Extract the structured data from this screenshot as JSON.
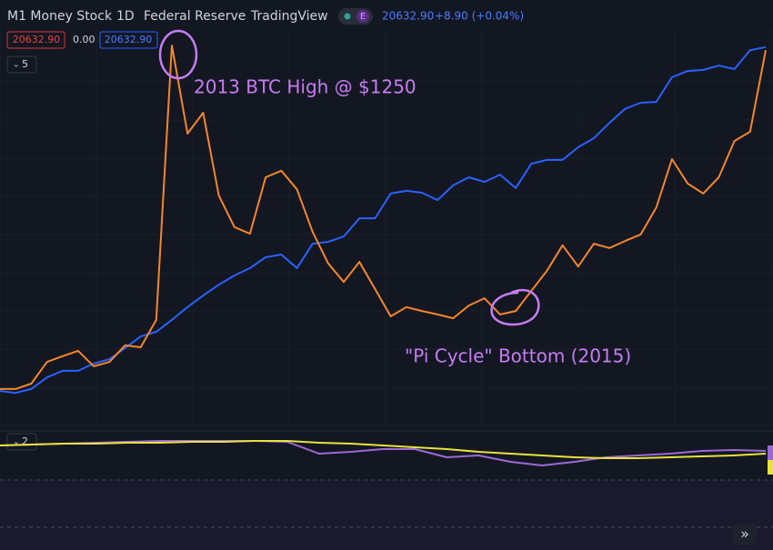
{
  "header": {
    "symbol": "M1 Money Stock",
    "interval": "1D",
    "source": "Federal Reserve",
    "platform": "TradingView",
    "badge": "E",
    "price": "20632.90",
    "change": "+8.90 (+0.04%)"
  },
  "legend": {
    "value_left": "20632.90",
    "zero": "0.00",
    "value_right": "20632.90",
    "collapse_main": "5",
    "collapse_pane": "2",
    "scroll": "»"
  },
  "chart_data": [
    {
      "type": "line",
      "ylim": [
        0,
        100
      ],
      "annotations": [
        "2013 BTC High @ $1250",
        "\"Pi Cycle\" Bottom (2015)"
      ],
      "series": [
        {
          "color": "#2962ff",
          "values": [
            9.4,
            8.9,
            9.9,
            12.9,
            14.6,
            14.6,
            16.5,
            17.6,
            20.5,
            23.5,
            24.7,
            27.8,
            31.1,
            34.1,
            36.9,
            39.3,
            41.2,
            44,
            44.7,
            41.2,
            47.5,
            48,
            49.4,
            54.1,
            54.1,
            60.5,
            61.2,
            60.7,
            58.8,
            62.6,
            64.7,
            63.5,
            65.4,
            61.9,
            68.2,
            69.2,
            69.2,
            72.5,
            74.8,
            78.8,
            82.4,
            84,
            84.2,
            90.6,
            92.2,
            92.5,
            93.6,
            92.7,
            97.6,
            98.4
          ]
        },
        {
          "color": "#f7862a",
          "values": [
            9.9,
            9.9,
            11.3,
            16.9,
            18.4,
            19.8,
            15.8,
            16.9,
            21.2,
            20.7,
            27.8,
            98.8,
            76,
            81.4,
            60,
            51.8,
            50.1,
            64.7,
            66.4,
            61.6,
            50.6,
            42.4,
            37.6,
            42.8,
            35.8,
            28.7,
            31.1,
            30.1,
            29.2,
            28.2,
            31.5,
            33.4,
            29.2,
            30.1,
            35.3,
            40.5,
            47.1,
            41.6,
            47.5,
            46.4,
            48.2,
            49.9,
            56.9,
            69.4,
            63.1,
            60.5,
            64.7,
            74.1,
            76.5,
            97.6
          ]
        }
      ]
    },
    {
      "type": "line",
      "ylim": [
        0,
        100
      ],
      "series": [
        {
          "color": "#9c6ad6",
          "values": [
            80,
            82,
            84,
            86,
            88,
            90,
            90,
            90,
            90,
            88,
            62,
            66,
            72,
            72,
            54,
            58,
            44,
            36,
            44,
            54,
            58,
            62,
            68,
            70,
            68
          ]
        },
        {
          "color": "#e8e33b",
          "values": [
            80,
            82,
            84,
            84,
            86,
            86,
            88,
            88,
            90,
            90,
            86,
            84,
            80,
            76,
            72,
            66,
            62,
            58,
            54,
            52,
            52,
            54,
            56,
            58,
            62
          ]
        }
      ]
    }
  ]
}
